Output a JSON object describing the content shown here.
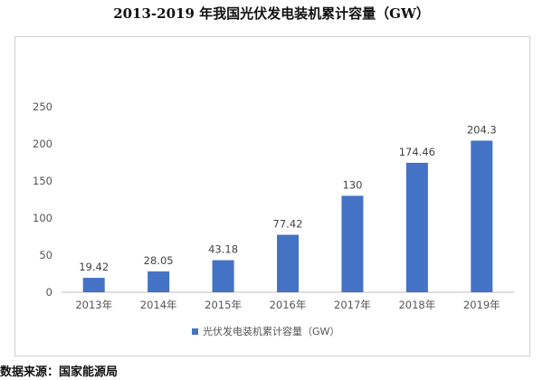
{
  "chart_data": {
    "type": "bar",
    "title": "2013-2019 年我国光伏发电装机累计容量（GW）",
    "categories": [
      "2013年",
      "2014年",
      "2015年",
      "2016年",
      "2017年",
      "2018年",
      "2019年"
    ],
    "series": [
      {
        "name": "光伏发电装机累计容量（GW）",
        "values": [
          19.42,
          28.05,
          43.18,
          77.42,
          130,
          174.46,
          204.3
        ],
        "data_labels": [
          "19.42",
          "28.05",
          "43.18",
          "77.42",
          "130",
          "174.46",
          "204.3"
        ],
        "color": "#4472C4"
      }
    ],
    "ylim": [
      0,
      250
    ],
    "yticks": [
      0,
      50,
      100,
      150,
      200,
      250
    ],
    "grid": false,
    "legend_position": "bottom"
  },
  "source_text": "数据来源：国家能源局"
}
